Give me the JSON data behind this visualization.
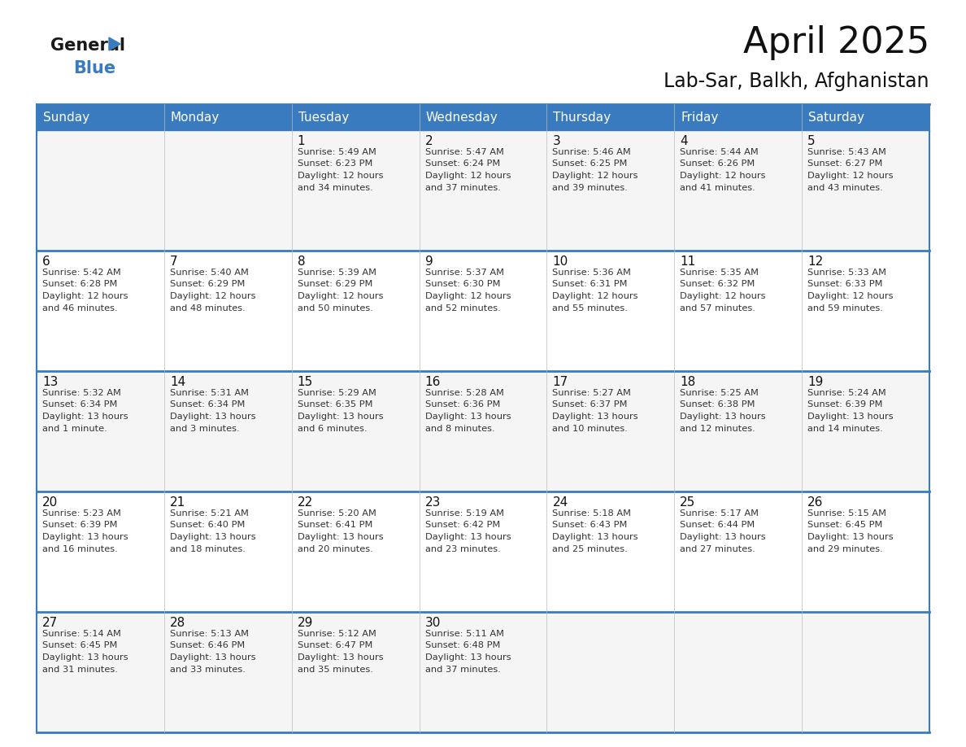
{
  "title": "April 2025",
  "subtitle": "Lab-Sar, Balkh, Afghanistan",
  "header_color": "#3a7bbf",
  "header_text_color": "#ffffff",
  "border_color": "#3a7bbf",
  "day_names": [
    "Sunday",
    "Monday",
    "Tuesday",
    "Wednesday",
    "Thursday",
    "Friday",
    "Saturday"
  ],
  "days": [
    {
      "day": 1,
      "col": 2,
      "row": 0,
      "sunrise": "5:49 AM",
      "sunset": "6:23 PM",
      "daylight": "12 hours",
      "daylight2": "and 34 minutes."
    },
    {
      "day": 2,
      "col": 3,
      "row": 0,
      "sunrise": "5:47 AM",
      "sunset": "6:24 PM",
      "daylight": "12 hours",
      "daylight2": "and 37 minutes."
    },
    {
      "day": 3,
      "col": 4,
      "row": 0,
      "sunrise": "5:46 AM",
      "sunset": "6:25 PM",
      "daylight": "12 hours",
      "daylight2": "and 39 minutes."
    },
    {
      "day": 4,
      "col": 5,
      "row": 0,
      "sunrise": "5:44 AM",
      "sunset": "6:26 PM",
      "daylight": "12 hours",
      "daylight2": "and 41 minutes."
    },
    {
      "day": 5,
      "col": 6,
      "row": 0,
      "sunrise": "5:43 AM",
      "sunset": "6:27 PM",
      "daylight": "12 hours",
      "daylight2": "and 43 minutes."
    },
    {
      "day": 6,
      "col": 0,
      "row": 1,
      "sunrise": "5:42 AM",
      "sunset": "6:28 PM",
      "daylight": "12 hours",
      "daylight2": "and 46 minutes."
    },
    {
      "day": 7,
      "col": 1,
      "row": 1,
      "sunrise": "5:40 AM",
      "sunset": "6:29 PM",
      "daylight": "12 hours",
      "daylight2": "and 48 minutes."
    },
    {
      "day": 8,
      "col": 2,
      "row": 1,
      "sunrise": "5:39 AM",
      "sunset": "6:29 PM",
      "daylight": "12 hours",
      "daylight2": "and 50 minutes."
    },
    {
      "day": 9,
      "col": 3,
      "row": 1,
      "sunrise": "5:37 AM",
      "sunset": "6:30 PM",
      "daylight": "12 hours",
      "daylight2": "and 52 minutes."
    },
    {
      "day": 10,
      "col": 4,
      "row": 1,
      "sunrise": "5:36 AM",
      "sunset": "6:31 PM",
      "daylight": "12 hours",
      "daylight2": "and 55 minutes."
    },
    {
      "day": 11,
      "col": 5,
      "row": 1,
      "sunrise": "5:35 AM",
      "sunset": "6:32 PM",
      "daylight": "12 hours",
      "daylight2": "and 57 minutes."
    },
    {
      "day": 12,
      "col": 6,
      "row": 1,
      "sunrise": "5:33 AM",
      "sunset": "6:33 PM",
      "daylight": "12 hours",
      "daylight2": "and 59 minutes."
    },
    {
      "day": 13,
      "col": 0,
      "row": 2,
      "sunrise": "5:32 AM",
      "sunset": "6:34 PM",
      "daylight": "13 hours",
      "daylight2": "and 1 minute."
    },
    {
      "day": 14,
      "col": 1,
      "row": 2,
      "sunrise": "5:31 AM",
      "sunset": "6:34 PM",
      "daylight": "13 hours",
      "daylight2": "and 3 minutes."
    },
    {
      "day": 15,
      "col": 2,
      "row": 2,
      "sunrise": "5:29 AM",
      "sunset": "6:35 PM",
      "daylight": "13 hours",
      "daylight2": "and 6 minutes."
    },
    {
      "day": 16,
      "col": 3,
      "row": 2,
      "sunrise": "5:28 AM",
      "sunset": "6:36 PM",
      "daylight": "13 hours",
      "daylight2": "and 8 minutes."
    },
    {
      "day": 17,
      "col": 4,
      "row": 2,
      "sunrise": "5:27 AM",
      "sunset": "6:37 PM",
      "daylight": "13 hours",
      "daylight2": "and 10 minutes."
    },
    {
      "day": 18,
      "col": 5,
      "row": 2,
      "sunrise": "5:25 AM",
      "sunset": "6:38 PM",
      "daylight": "13 hours",
      "daylight2": "and 12 minutes."
    },
    {
      "day": 19,
      "col": 6,
      "row": 2,
      "sunrise": "5:24 AM",
      "sunset": "6:39 PM",
      "daylight": "13 hours",
      "daylight2": "and 14 minutes."
    },
    {
      "day": 20,
      "col": 0,
      "row": 3,
      "sunrise": "5:23 AM",
      "sunset": "6:39 PM",
      "daylight": "13 hours",
      "daylight2": "and 16 minutes."
    },
    {
      "day": 21,
      "col": 1,
      "row": 3,
      "sunrise": "5:21 AM",
      "sunset": "6:40 PM",
      "daylight": "13 hours",
      "daylight2": "and 18 minutes."
    },
    {
      "day": 22,
      "col": 2,
      "row": 3,
      "sunrise": "5:20 AM",
      "sunset": "6:41 PM",
      "daylight": "13 hours",
      "daylight2": "and 20 minutes."
    },
    {
      "day": 23,
      "col": 3,
      "row": 3,
      "sunrise": "5:19 AM",
      "sunset": "6:42 PM",
      "daylight": "13 hours",
      "daylight2": "and 23 minutes."
    },
    {
      "day": 24,
      "col": 4,
      "row": 3,
      "sunrise": "5:18 AM",
      "sunset": "6:43 PM",
      "daylight": "13 hours",
      "daylight2": "and 25 minutes."
    },
    {
      "day": 25,
      "col": 5,
      "row": 3,
      "sunrise": "5:17 AM",
      "sunset": "6:44 PM",
      "daylight": "13 hours",
      "daylight2": "and 27 minutes."
    },
    {
      "day": 26,
      "col": 6,
      "row": 3,
      "sunrise": "5:15 AM",
      "sunset": "6:45 PM",
      "daylight": "13 hours",
      "daylight2": "and 29 minutes."
    },
    {
      "day": 27,
      "col": 0,
      "row": 4,
      "sunrise": "5:14 AM",
      "sunset": "6:45 PM",
      "daylight": "13 hours",
      "daylight2": "and 31 minutes."
    },
    {
      "day": 28,
      "col": 1,
      "row": 4,
      "sunrise": "5:13 AM",
      "sunset": "6:46 PM",
      "daylight": "13 hours",
      "daylight2": "and 33 minutes."
    },
    {
      "day": 29,
      "col": 2,
      "row": 4,
      "sunrise": "5:12 AM",
      "sunset": "6:47 PM",
      "daylight": "13 hours",
      "daylight2": "and 35 minutes."
    },
    {
      "day": 30,
      "col": 3,
      "row": 4,
      "sunrise": "5:11 AM",
      "sunset": "6:48 PM",
      "daylight": "13 hours",
      "daylight2": "and 37 minutes."
    }
  ],
  "logo_general_color": "#1a1a1a",
  "logo_blue_color": "#3a7bbf",
  "logo_triangle_color": "#3a7bbf",
  "title_fontsize": 32,
  "subtitle_fontsize": 17,
  "header_fontsize": 11,
  "day_num_fontsize": 11,
  "cell_text_fontsize": 8.2,
  "text_color": "#333333",
  "row0_bg": "#f5f5f5",
  "row1_bg": "#ffffff",
  "row2_bg": "#f5f5f5",
  "row3_bg": "#ffffff",
  "row4_bg": "#f5f5f5"
}
